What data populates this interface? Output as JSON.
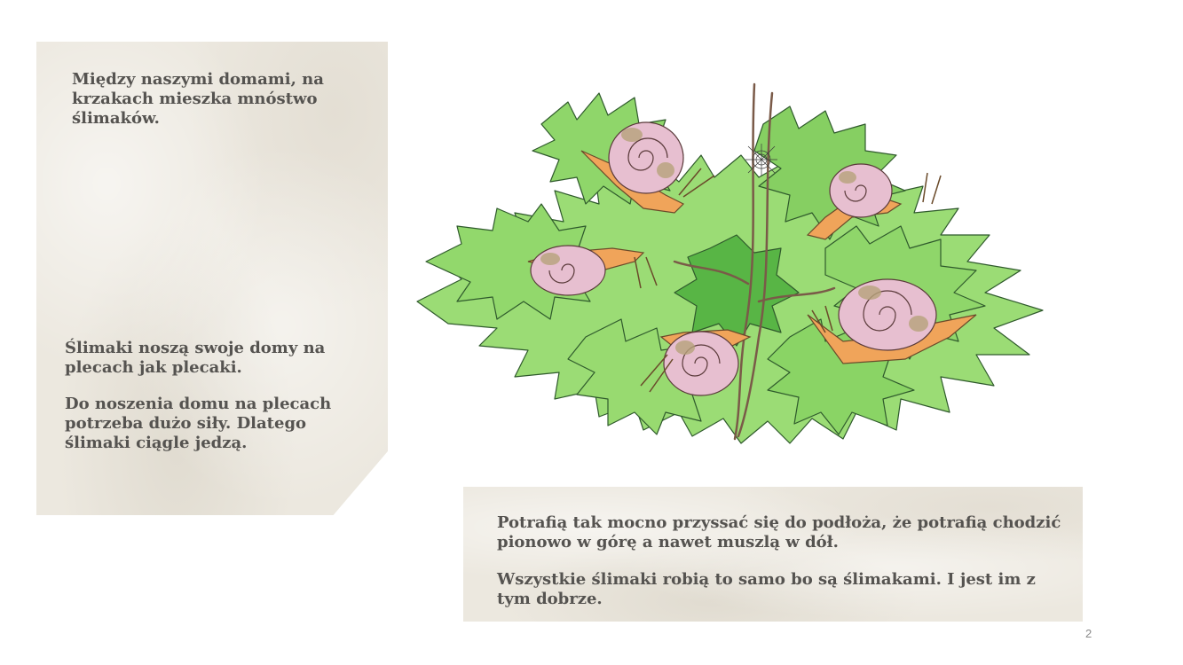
{
  "left_panel": {
    "paragraph_1": "Między naszymi domami, na krzakach mieszka mnóstwo ślimaków.",
    "paragraph_2": "Ślimaki noszą swoje domy na plecach jak plecaki.",
    "paragraph_3": "Do noszenia domu na plecach potrzeba dużo siły. Dlatego ślimaki ciągle jedzą."
  },
  "bottom_panel": {
    "paragraph_1": "Potrafią tak mocno przyssać się do podłoża, że potrafią chodzić pionowo w górę a nawet muszlą w dół.",
    "paragraph_2": "Wszystkie ślimaki robią to samo bo są ślimakami. I jest im z tym dobrze."
  },
  "illustration": {
    "subject": "snails-on-green-bush",
    "colors": {
      "leaf": "#8fd66a",
      "leaf_dark": "#4fa83a",
      "leaf_outline": "#2f5a2c",
      "shell": "#e7bfd0",
      "shell_spot": "#b6a37a",
      "snail_body": "#f0a45a",
      "stem": "#7a5a48"
    }
  },
  "page_number": "2"
}
